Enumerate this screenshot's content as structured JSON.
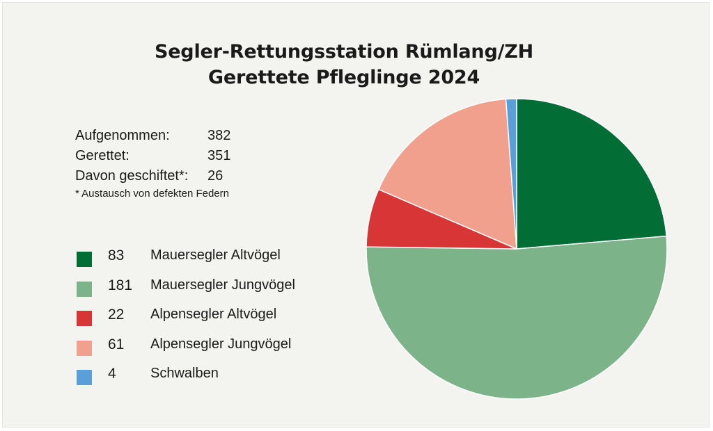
{
  "title": {
    "line1": "Segler-Rettungsstation Rümlang/ZH",
    "line2": "Gerettete Pfleglinge 2024"
  },
  "stats": [
    {
      "label": "Aufgenommen:",
      "value": "382"
    },
    {
      "label": "Gerettet:",
      "value": "351"
    },
    {
      "label": "Davon geschiftet*:",
      "value": "26"
    }
  ],
  "footnote": "* Austausch von defekten Federn",
  "chart_data": {
    "type": "pie",
    "title": "Segler-Rettungsstation Rümlang/ZH Gerettete Pfleglinge 2024",
    "legend_placement": "left",
    "slices": [
      {
        "label": "Mauersegler Altvögel",
        "value": 83,
        "color": "#026d35"
      },
      {
        "label": "Mauersegler Jungvögel",
        "value": 181,
        "color": "#7db388"
      },
      {
        "label": "Alpensegler Altvögel",
        "value": 22,
        "color": "#d73536"
      },
      {
        "label": "Alpensegler Jungvögel",
        "value": 61,
        "color": "#f0a08c"
      },
      {
        "label": "Schwalben",
        "value": 4,
        "color": "#5b9fd8"
      }
    ]
  }
}
